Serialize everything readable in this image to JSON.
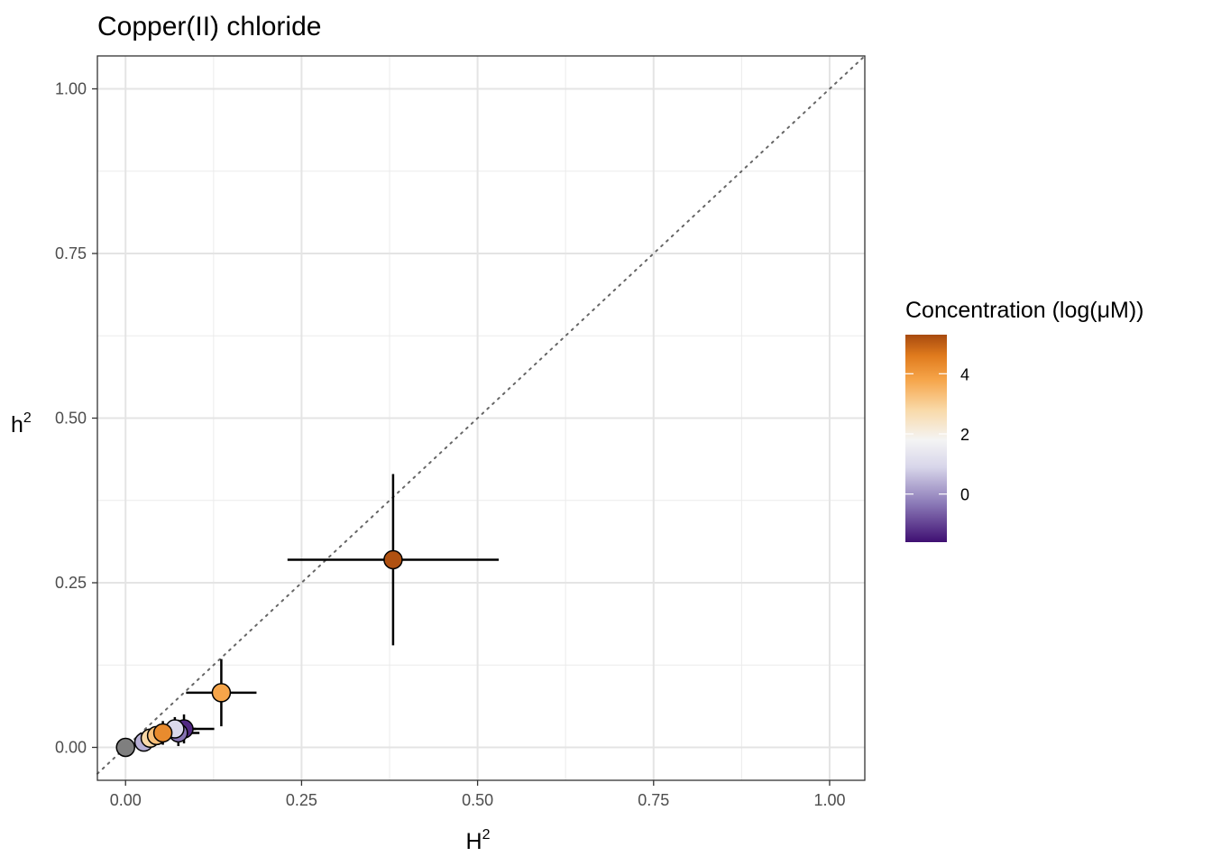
{
  "chart_data": {
    "type": "scatter",
    "title": "Copper(II) chloride",
    "xlabel": {
      "base": "H",
      "sup": "2"
    },
    "ylabel": {
      "base": "h",
      "sup": "2"
    },
    "xlim": [
      -0.04,
      1.05
    ],
    "ylim": [
      -0.05,
      1.05
    ],
    "xticks": [
      0.0,
      0.25,
      0.5,
      0.75,
      1.0
    ],
    "xtick_labels": [
      "0.00",
      "0.25",
      "0.50",
      "0.75",
      "1.00"
    ],
    "yticks": [
      0.0,
      0.25,
      0.5,
      0.75,
      1.0
    ],
    "ytick_labels": [
      "0.00",
      "0.25",
      "0.50",
      "0.75",
      "1.00"
    ],
    "grid": true,
    "reference_line": {
      "slope": 1,
      "intercept": 0,
      "style": "dotted",
      "color": "#666666"
    },
    "points": [
      {
        "x": 0.0,
        "y": 0.0,
        "conc": null,
        "x_err": null,
        "y_err": null
      },
      {
        "x": 0.083,
        "y": 0.028,
        "conc": -1.3,
        "x_err": 0.043,
        "y_err": 0.022
      },
      {
        "x": 0.075,
        "y": 0.022,
        "conc": -0.4,
        "x_err": 0.03,
        "y_err": 0.02
      },
      {
        "x": 0.026,
        "y": 0.008,
        "conc": 0.4,
        "x_err": 0.012,
        "y_err": 0.008
      },
      {
        "x": 0.07,
        "y": 0.028,
        "conc": 1.0,
        "x_err": 0.03,
        "y_err": 0.018
      },
      {
        "x": 0.035,
        "y": 0.014,
        "conc": 2.8,
        "x_err": 0.015,
        "y_err": 0.01
      },
      {
        "x": 0.044,
        "y": 0.018,
        "conc": 3.3,
        "x_err": 0.02,
        "y_err": 0.012
      },
      {
        "x": 0.053,
        "y": 0.022,
        "conc": 4.3,
        "x_err": 0.02,
        "y_err": 0.018
      },
      {
        "x": 0.136,
        "y": 0.083,
        "conc": 3.8,
        "x_err": 0.05,
        "y_err": 0.051
      },
      {
        "x": 0.38,
        "y": 0.285,
        "conc": 5.2,
        "x_err": 0.15,
        "y_err": 0.13
      }
    ],
    "na_color": "#7f7f7f",
    "colorbar": {
      "title": "Concentration (log(μM))",
      "min": -1.6,
      "max": 5.3,
      "ticks": [
        0,
        2,
        4
      ],
      "tick_labels": [
        "0",
        "2",
        "4"
      ],
      "stops": [
        {
          "value": -1.6,
          "color": "#3f0f72"
        },
        {
          "value": -0.3,
          "color": "#8c7bb8"
        },
        {
          "value": 0.9,
          "color": "#d8d6ea"
        },
        {
          "value": 1.8,
          "color": "#f4f4f4"
        },
        {
          "value": 2.8,
          "color": "#f9d9a8"
        },
        {
          "value": 3.8,
          "color": "#f6a54a"
        },
        {
          "value": 4.6,
          "color": "#e07b1d"
        },
        {
          "value": 5.3,
          "color": "#a84a0f"
        }
      ]
    }
  }
}
